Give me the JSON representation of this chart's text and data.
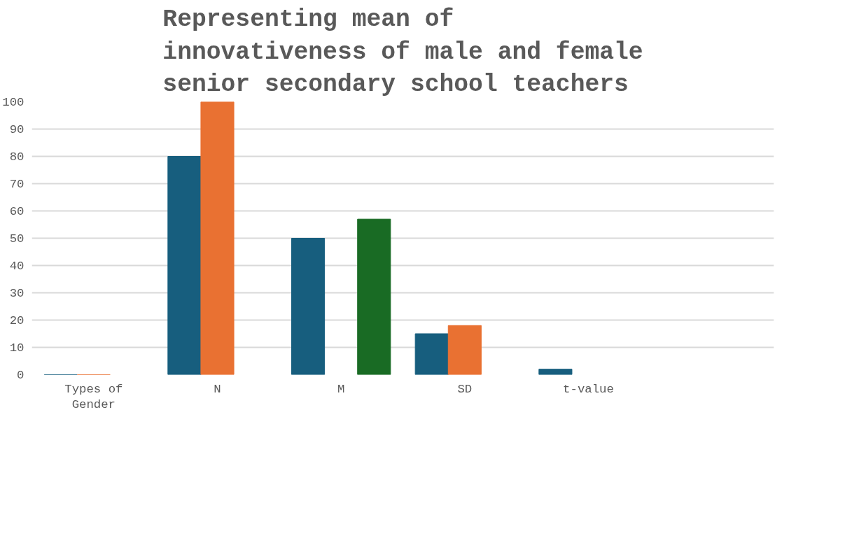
{
  "chart_data": {
    "type": "bar",
    "title": "Representing mean of innovativeness of male and female senior secondary school teachers",
    "categories": [
      "Types of\nGender",
      "N",
      "M",
      "SD",
      "t-value",
      null
    ],
    "series": [
      {
        "color": "#175e7e",
        "values": [
          0,
          80,
          50,
          15,
          2,
          null
        ]
      },
      {
        "color": "#e97132",
        "values": [
          0,
          100,
          null,
          18,
          null,
          null
        ]
      },
      {
        "color": "#196b24",
        "values": [
          null,
          null,
          57,
          null,
          null,
          null
        ]
      }
    ],
    "ylim": [
      0,
      100
    ],
    "yticks": [
      0,
      10,
      20,
      30,
      40,
      50,
      60,
      70,
      80,
      90,
      100
    ],
    "grid": "y"
  }
}
